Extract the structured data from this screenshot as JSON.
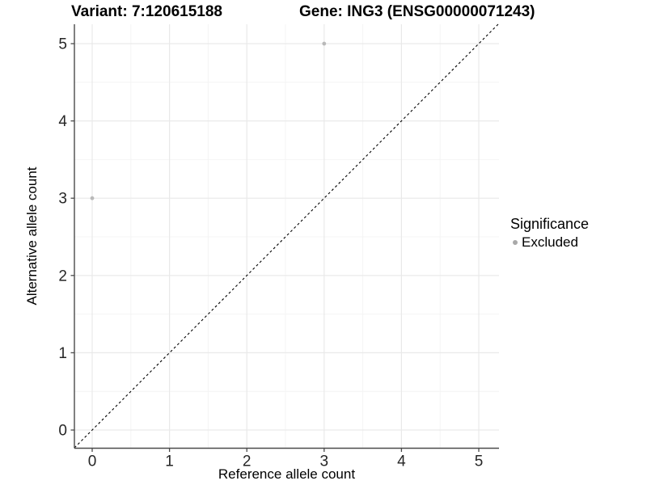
{
  "header": {
    "title_left": "Variant: 7:120615188",
    "title_right": "Gene: ING3 (ENSG00000071243)"
  },
  "axes": {
    "x_label": "Reference allele count",
    "y_label": "Alternative allele count"
  },
  "legend": {
    "title": "Significance",
    "position": "right",
    "items": [
      {
        "label": "Excluded",
        "color": "#a9a9a9",
        "marker": "circle"
      }
    ]
  },
  "chart_data": {
    "type": "scatter",
    "title": "Variant: 7:120615188  |  Gene: ING3 (ENSG00000071243)",
    "xlabel": "Reference allele count",
    "ylabel": "Alternative allele count",
    "xlim": [
      0,
      5
    ],
    "ylim": [
      0,
      5
    ],
    "x_ticks": [
      0,
      1,
      2,
      3,
      4,
      5
    ],
    "y_ticks": [
      0,
      1,
      2,
      3,
      4,
      5
    ],
    "grid": "major and minor gridlines, very light grey on white panel",
    "legend_position": "right",
    "series": [
      {
        "name": "Excluded",
        "color": "#b9b9b9",
        "points": [
          {
            "x": 0,
            "y": 3
          },
          {
            "x": 3,
            "y": 5
          }
        ]
      }
    ],
    "reference_line": {
      "description": "identity line y = x",
      "style": "dashed",
      "color": "#000000"
    },
    "colors": {
      "axis": "#4a4a4a",
      "tick_label": "#262626",
      "grid_major": "#e9e9e9",
      "grid_minor": "#f4f4f4"
    }
  }
}
